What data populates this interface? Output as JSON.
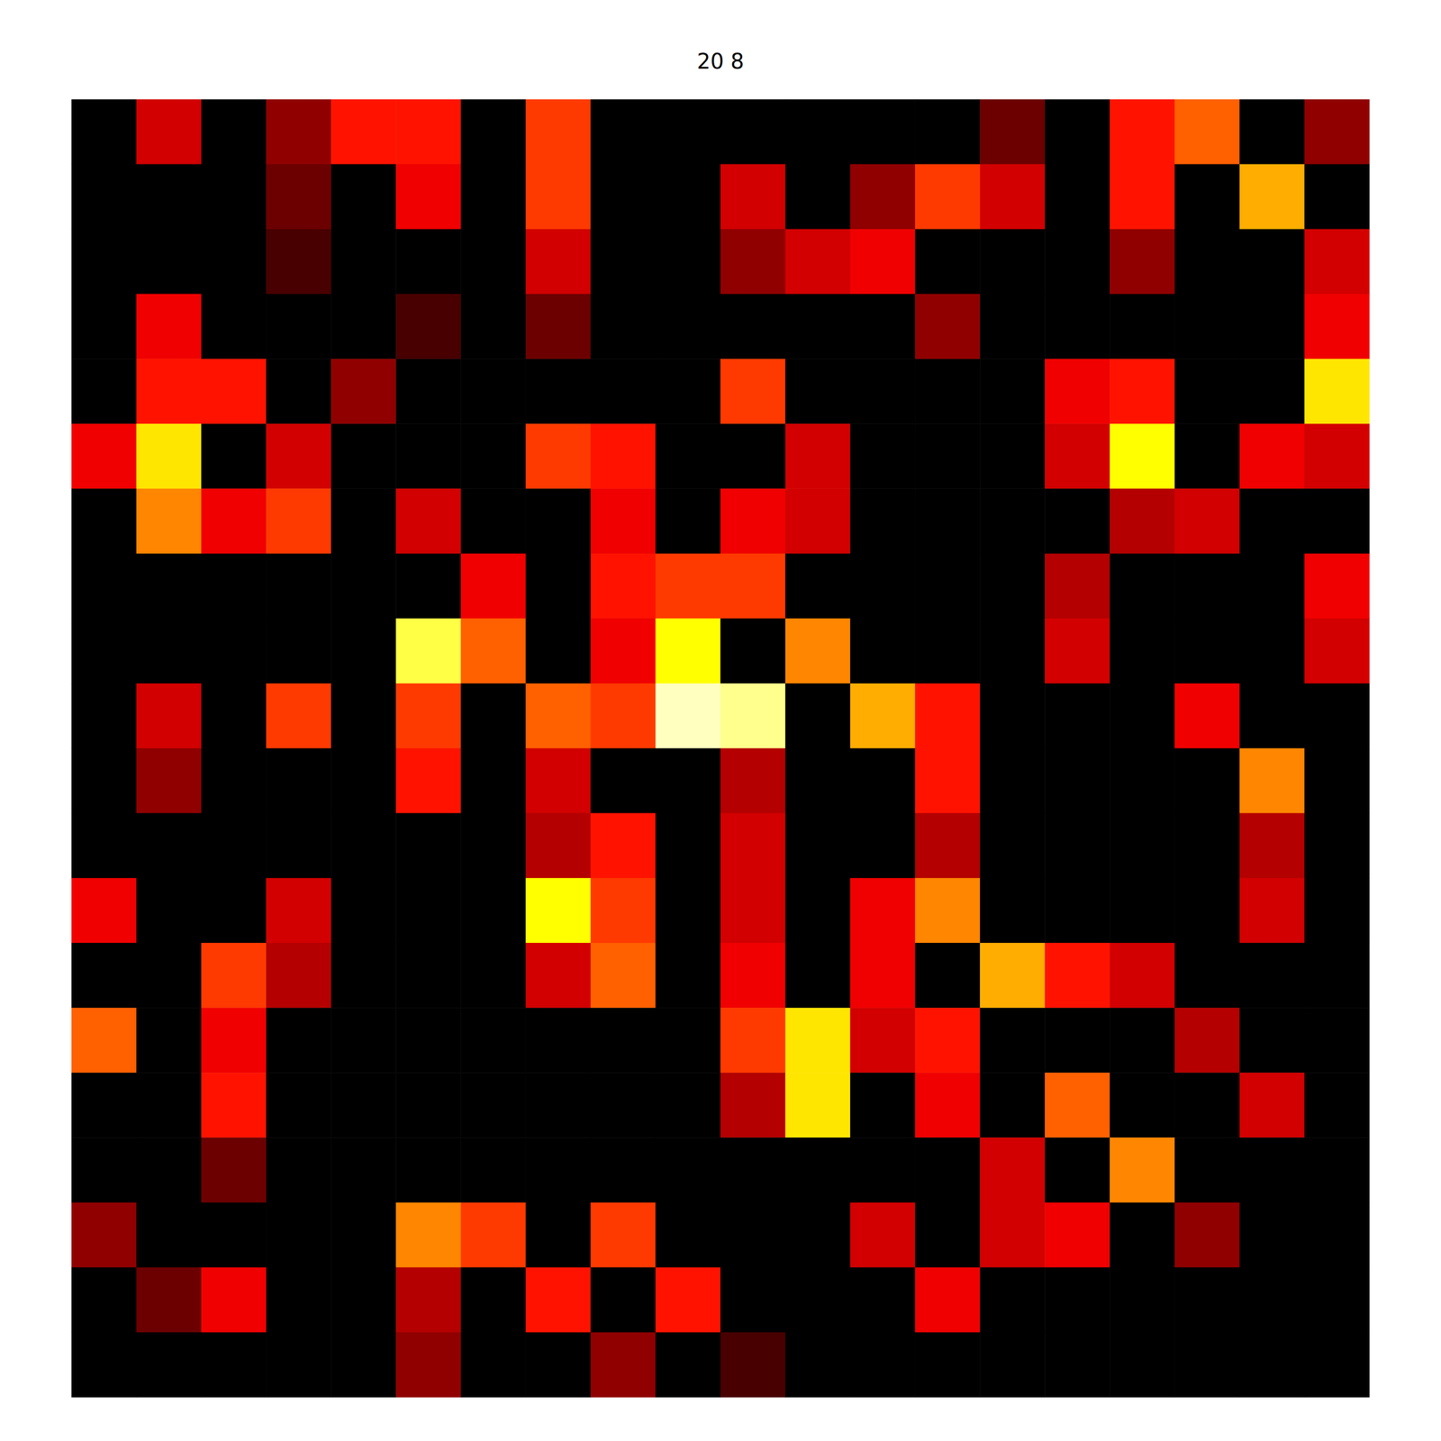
{
  "chart_data": {
    "type": "heatmap",
    "title": "20 8",
    "tick_labels": false,
    "grid": false,
    "color_range": [
      0,
      1
    ],
    "cells": [
      [
        0,
        0.3,
        0,
        0.2,
        0.4,
        0.4,
        0,
        0.45,
        0,
        0,
        0,
        0,
        0,
        0,
        0.15,
        0,
        0.4,
        0.5,
        0,
        0.2
      ],
      [
        0,
        0,
        0,
        0.15,
        0,
        0.35,
        0,
        0.45,
        0,
        0,
        0.3,
        0,
        0.2,
        0.45,
        0.3,
        0,
        0.4,
        0,
        0.6,
        0
      ],
      [
        0,
        0,
        0,
        0.1,
        0,
        0,
        0,
        0.3,
        0,
        0,
        0.2,
        0.3,
        0.35,
        0,
        0,
        0,
        0.2,
        0,
        0,
        0.3
      ],
      [
        0,
        0.35,
        0,
        0,
        0,
        0.1,
        0,
        0.15,
        0,
        0,
        0,
        0,
        0,
        0.2,
        0,
        0,
        0,
        0,
        0,
        0.35
      ],
      [
        0,
        0.4,
        0.4,
        0,
        0.2,
        0,
        0,
        0,
        0,
        0,
        0.45,
        0,
        0,
        0,
        0,
        0.35,
        0.4,
        0,
        0,
        0.7
      ],
      [
        0.35,
        0.7,
        0,
        0.3,
        0,
        0,
        0,
        0.45,
        0.4,
        0,
        0,
        0.3,
        0,
        0,
        0,
        0.3,
        0.75,
        0,
        0.35,
        0.3
      ],
      [
        0,
        0.55,
        0.35,
        0.45,
        0,
        0.3,
        0,
        0,
        0.35,
        0,
        0.35,
        0.3,
        0,
        0,
        0,
        0,
        0.25,
        0.3,
        0,
        0
      ],
      [
        0,
        0,
        0,
        0,
        0,
        0,
        0.35,
        0,
        0.4,
        0.45,
        0.45,
        0,
        0,
        0,
        0,
        0.25,
        0,
        0,
        0,
        0.35
      ],
      [
        0,
        0,
        0,
        0,
        0,
        0.8,
        0.5,
        0,
        0.35,
        0.75,
        0,
        0.55,
        0,
        0,
        0,
        0.3,
        0,
        0,
        0,
        0.3
      ],
      [
        0,
        0.3,
        0,
        0.45,
        0,
        0.45,
        0,
        0.5,
        0.45,
        0.9,
        0.85,
        0,
        0.6,
        0.4,
        0,
        0,
        0,
        0.35,
        0,
        0
      ],
      [
        0,
        0.2,
        0,
        0,
        0,
        0.4,
        0,
        0.3,
        0,
        0,
        0.25,
        0,
        0,
        0.4,
        0,
        0,
        0,
        0,
        0.55,
        0
      ],
      [
        0,
        0,
        0,
        0,
        0,
        0,
        0,
        0.25,
        0.4,
        0,
        0.3,
        0,
        0,
        0.25,
        0,
        0,
        0,
        0,
        0.25,
        0
      ],
      [
        0.35,
        0,
        0,
        0.3,
        0,
        0,
        0,
        0.75,
        0.45,
        0,
        0.3,
        0,
        0.35,
        0.55,
        0,
        0,
        0,
        0,
        0.3,
        0
      ],
      [
        0,
        0,
        0.45,
        0.25,
        0,
        0,
        0,
        0.3,
        0.5,
        0,
        0.35,
        0,
        0.35,
        0,
        0.6,
        0.4,
        0.3,
        0,
        0,
        0
      ],
      [
        0.5,
        0,
        0.35,
        0,
        0,
        0,
        0,
        0,
        0,
        0,
        0.45,
        0.7,
        0.3,
        0.4,
        0,
        0,
        0,
        0.25,
        0,
        0
      ],
      [
        0,
        0,
        0.4,
        0,
        0,
        0,
        0,
        0,
        0,
        0,
        0.25,
        0.7,
        0,
        0.35,
        0,
        0.5,
        0,
        0,
        0.3,
        0
      ],
      [
        0,
        0,
        0.15,
        0,
        0,
        0,
        0,
        0,
        0,
        0,
        0,
        0,
        0,
        0,
        0.3,
        0,
        0.55,
        0,
        0,
        0
      ],
      [
        0.2,
        0,
        0,
        0,
        0,
        0.55,
        0.45,
        0,
        0.45,
        0,
        0,
        0,
        0.3,
        0,
        0.3,
        0.35,
        0,
        0.2,
        0,
        0
      ],
      [
        0,
        0.15,
        0.35,
        0,
        0,
        0.25,
        0,
        0.4,
        0,
        0.4,
        0,
        0,
        0,
        0.35,
        0,
        0,
        0,
        0,
        0,
        0
      ],
      [
        0,
        0,
        0,
        0,
        0,
        0.2,
        0,
        0,
        0.2,
        0,
        0.1,
        0,
        0,
        0,
        0,
        0,
        0,
        0,
        0,
        0
      ]
    ]
  }
}
